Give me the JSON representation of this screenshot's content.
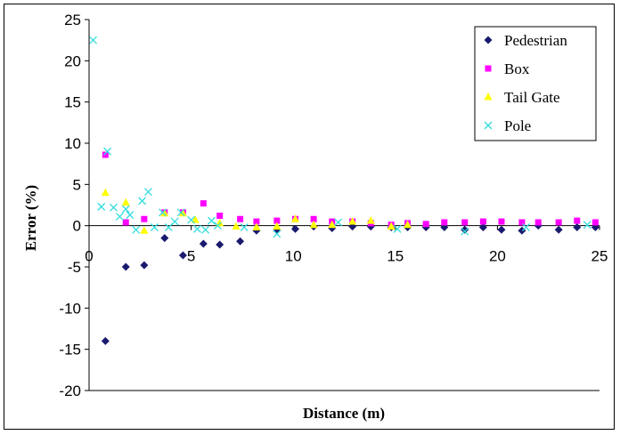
{
  "chart_data": {
    "type": "scatter",
    "title": "",
    "xlabel": "Distance (m)",
    "ylabel": "Error (%)",
    "xlim": [
      0,
      25
    ],
    "ylim": [
      -20,
      25
    ],
    "xticks": [
      0,
      5,
      10,
      15,
      20,
      25
    ],
    "yticks": [
      -20,
      -15,
      -10,
      -5,
      0,
      5,
      10,
      15,
      20,
      25
    ],
    "grid": false,
    "legend_position": "top-right",
    "series": [
      {
        "name": "Pedestrian",
        "marker": "diamond",
        "color": "#1a1a6e",
        "points": [
          [
            0.8,
            -14.0
          ],
          [
            1.8,
            -5.0
          ],
          [
            2.7,
            -4.8
          ],
          [
            3.7,
            -1.5
          ],
          [
            4.6,
            -3.6
          ],
          [
            5.6,
            -2.2
          ],
          [
            6.4,
            -2.3
          ],
          [
            7.4,
            -1.9
          ],
          [
            8.2,
            -0.6
          ],
          [
            9.2,
            -0.6
          ],
          [
            10.1,
            -0.4
          ],
          [
            11.0,
            -0.1
          ],
          [
            11.9,
            -0.3
          ],
          [
            12.9,
            -0.1
          ],
          [
            13.8,
            -0.1
          ],
          [
            14.8,
            -0.2
          ],
          [
            15.6,
            -0.2
          ],
          [
            16.5,
            -0.2
          ],
          [
            17.4,
            -0.2
          ],
          [
            18.4,
            -0.5
          ],
          [
            19.3,
            -0.2
          ],
          [
            20.2,
            -0.5
          ],
          [
            21.2,
            -0.6
          ],
          [
            22.0,
            0.0
          ],
          [
            23.0,
            -0.5
          ],
          [
            23.9,
            -0.2
          ],
          [
            24.8,
            -0.2
          ]
        ]
      },
      {
        "name": "Box",
        "marker": "square",
        "color": "#ff00ff",
        "points": [
          [
            0.8,
            8.6
          ],
          [
            1.8,
            0.4
          ],
          [
            2.7,
            0.8
          ],
          [
            3.7,
            1.6
          ],
          [
            4.6,
            1.6
          ],
          [
            5.6,
            2.7
          ],
          [
            6.4,
            1.2
          ],
          [
            7.4,
            0.8
          ],
          [
            8.2,
            0.5
          ],
          [
            9.2,
            0.6
          ],
          [
            10.1,
            0.8
          ],
          [
            11.0,
            0.8
          ],
          [
            11.9,
            0.5
          ],
          [
            12.9,
            0.5
          ],
          [
            13.8,
            0.3
          ],
          [
            14.8,
            0.1
          ],
          [
            15.6,
            0.3
          ],
          [
            16.5,
            0.2
          ],
          [
            17.4,
            0.4
          ],
          [
            18.4,
            0.4
          ],
          [
            19.3,
            0.5
          ],
          [
            20.2,
            0.5
          ],
          [
            21.2,
            0.4
          ],
          [
            22.0,
            0.4
          ],
          [
            23.0,
            0.4
          ],
          [
            23.9,
            0.6
          ],
          [
            24.8,
            0.4
          ]
        ]
      },
      {
        "name": "Tail Gate",
        "marker": "triangle",
        "color": "#ffff00",
        "points": [
          [
            0.8,
            4.0
          ],
          [
            1.8,
            2.8
          ],
          [
            2.7,
            -0.6
          ],
          [
            3.7,
            1.5
          ],
          [
            4.6,
            1.5
          ],
          [
            5.2,
            0.7
          ],
          [
            6.4,
            0.3
          ],
          [
            7.2,
            -0.1
          ],
          [
            8.2,
            -0.2
          ],
          [
            9.2,
            -0.1
          ],
          [
            10.1,
            0.8
          ],
          [
            11.0,
            0.1
          ],
          [
            11.9,
            0.1
          ],
          [
            12.9,
            0.5
          ],
          [
            13.8,
            0.6
          ],
          [
            14.8,
            -0.1
          ],
          [
            15.6,
            0.1
          ]
        ]
      },
      {
        "name": "Pole",
        "marker": "x",
        "color": "#33dddd",
        "points": [
          [
            0.2,
            22.5
          ],
          [
            0.6,
            2.3
          ],
          [
            0.9,
            9.0
          ],
          [
            1.2,
            2.2
          ],
          [
            1.5,
            1.1
          ],
          [
            1.8,
            2.0
          ],
          [
            2.0,
            1.3
          ],
          [
            2.3,
            -0.5
          ],
          [
            2.6,
            3.0
          ],
          [
            2.9,
            4.1
          ],
          [
            3.2,
            -0.2
          ],
          [
            3.6,
            1.6
          ],
          [
            3.9,
            -0.2
          ],
          [
            4.2,
            0.5
          ],
          [
            4.5,
            1.6
          ],
          [
            5.0,
            0.7
          ],
          [
            5.3,
            -0.4
          ],
          [
            5.7,
            -0.5
          ],
          [
            6.0,
            0.6
          ],
          [
            6.3,
            0.0
          ],
          [
            7.6,
            -0.2
          ],
          [
            9.2,
            -1.0
          ],
          [
            12.2,
            0.4
          ],
          [
            15.1,
            -0.4
          ],
          [
            18.4,
            -0.7
          ],
          [
            21.4,
            -0.2
          ],
          [
            24.4,
            0.1
          ]
        ]
      }
    ]
  }
}
